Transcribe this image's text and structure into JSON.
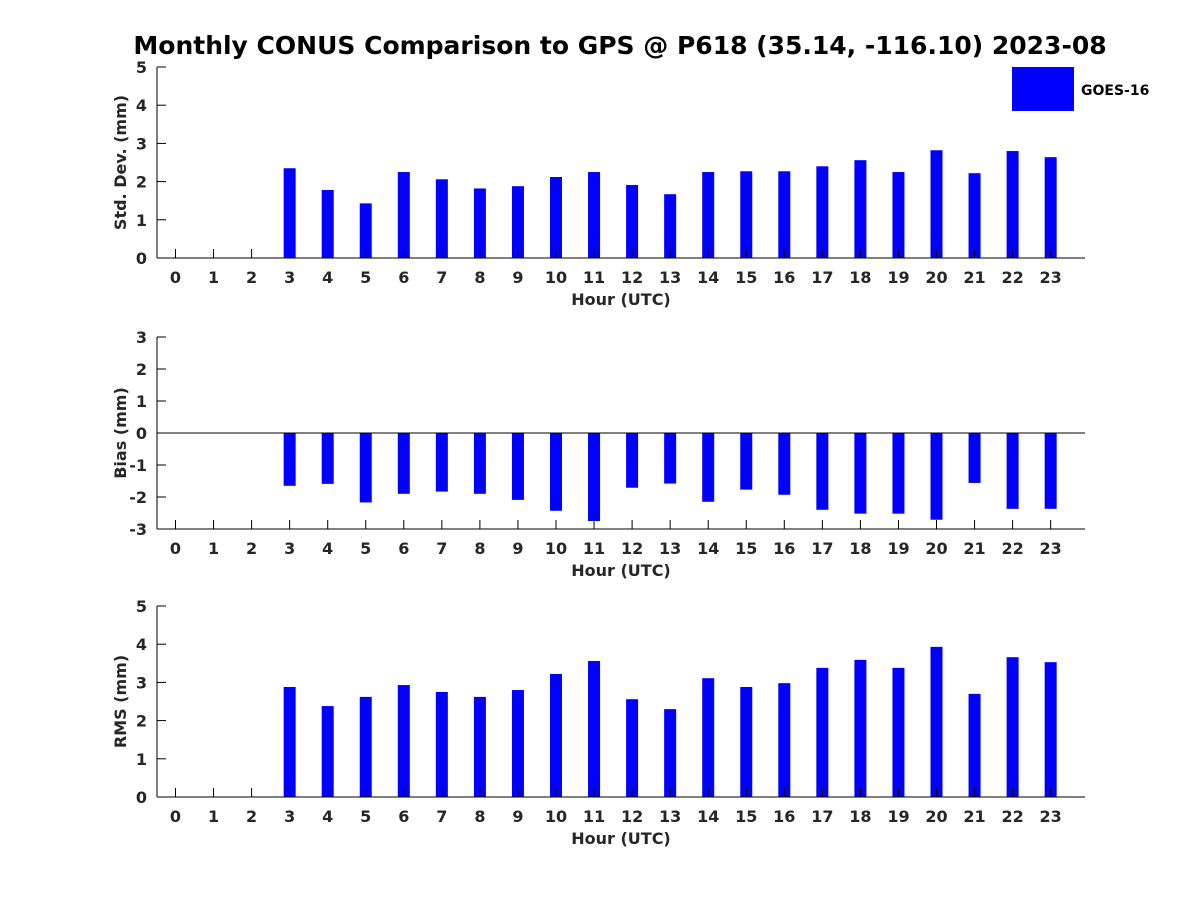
{
  "title": "Monthly CONUS Comparison to GPS @ P618 (35.14, -116.10) 2023-08",
  "legend": {
    "label": "GOES-16",
    "color": "#0000ff"
  },
  "chart_data": [
    {
      "type": "bar",
      "ylabel": "Std. Dev. (mm)",
      "xlabel": "Hour (UTC)",
      "ylim": [
        0,
        5
      ],
      "yticks": [
        0,
        1,
        2,
        3,
        4,
        5
      ],
      "categories": [
        "0",
        "1",
        "2",
        "3",
        "4",
        "5",
        "6",
        "7",
        "8",
        "9",
        "10",
        "11",
        "12",
        "13",
        "14",
        "15",
        "16",
        "17",
        "18",
        "19",
        "20",
        "21",
        "22",
        "23"
      ],
      "series": [
        {
          "name": "GOES-16",
          "color": "#0000ff",
          "values": [
            null,
            null,
            null,
            2.35,
            1.78,
            1.43,
            2.25,
            2.06,
            1.82,
            1.88,
            2.12,
            2.25,
            1.91,
            1.67,
            2.25,
            2.27,
            2.27,
            2.4,
            2.56,
            2.25,
            2.82,
            2.22,
            2.8,
            2.64
          ]
        }
      ]
    },
    {
      "type": "bar",
      "ylabel": "Bias (mm)",
      "xlabel": "Hour (UTC)",
      "ylim": [
        -3,
        3
      ],
      "yticks": [
        -3,
        -2,
        -1,
        0,
        1,
        2,
        3
      ],
      "categories": [
        "0",
        "1",
        "2",
        "3",
        "4",
        "5",
        "6",
        "7",
        "8",
        "9",
        "10",
        "11",
        "12",
        "13",
        "14",
        "15",
        "16",
        "17",
        "18",
        "19",
        "20",
        "21",
        "22",
        "23"
      ],
      "series": [
        {
          "name": "GOES-16",
          "color": "#0000ff",
          "values": [
            null,
            null,
            null,
            -1.65,
            -1.59,
            -2.17,
            -1.9,
            -1.83,
            -1.9,
            -2.09,
            -2.43,
            -2.75,
            -1.71,
            -1.58,
            -2.15,
            -1.77,
            -1.93,
            -2.4,
            -2.52,
            -2.52,
            -2.71,
            -1.56,
            -2.37,
            -2.37
          ]
        }
      ]
    },
    {
      "type": "bar",
      "ylabel": "RMS (mm)",
      "xlabel": "Hour (UTC)",
      "ylim": [
        0,
        5
      ],
      "yticks": [
        0,
        1,
        2,
        3,
        4,
        5
      ],
      "categories": [
        "0",
        "1",
        "2",
        "3",
        "4",
        "5",
        "6",
        "7",
        "8",
        "9",
        "10",
        "11",
        "12",
        "13",
        "14",
        "15",
        "16",
        "17",
        "18",
        "19",
        "20",
        "21",
        "22",
        "23"
      ],
      "series": [
        {
          "name": "GOES-16",
          "color": "#0000ff",
          "values": [
            null,
            null,
            null,
            2.88,
            2.38,
            2.62,
            2.93,
            2.75,
            2.62,
            2.8,
            3.22,
            3.56,
            2.56,
            2.3,
            3.11,
            2.88,
            2.98,
            3.38,
            3.59,
            3.38,
            3.93,
            2.7,
            3.66,
            3.53
          ]
        }
      ]
    }
  ]
}
